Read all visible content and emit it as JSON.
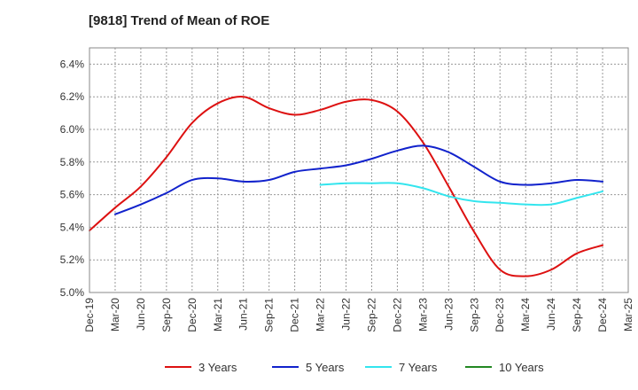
{
  "chart_data": {
    "type": "line",
    "title": "[9818]  Trend of Mean of ROE",
    "xlabel": "",
    "ylabel": "",
    "ylim": [
      5.0,
      6.5
    ],
    "yticks": [
      5.0,
      5.2,
      5.4,
      5.6,
      5.8,
      6.0,
      6.2,
      6.4
    ],
    "y_tick_format": "percent_1dp",
    "categories": [
      "Dec-19",
      "Mar-20",
      "Jun-20",
      "Sep-20",
      "Dec-20",
      "Mar-21",
      "Jun-21",
      "Sep-21",
      "Dec-21",
      "Mar-22",
      "Jun-22",
      "Sep-22",
      "Dec-22",
      "Mar-23",
      "Jun-23",
      "Sep-23",
      "Dec-23",
      "Mar-24",
      "Jun-24",
      "Sep-24",
      "Dec-24",
      "Mar-25"
    ],
    "grid": true,
    "legend_position": "bottom",
    "series": [
      {
        "name": "3 Years",
        "color": "#dd1111",
        "values": [
          5.38,
          5.52,
          5.65,
          5.83,
          6.04,
          6.16,
          6.2,
          6.13,
          6.09,
          6.12,
          6.17,
          6.18,
          6.11,
          5.92,
          5.65,
          5.37,
          5.14,
          5.1,
          5.14,
          5.24,
          5.29,
          null
        ]
      },
      {
        "name": "5 Years",
        "color": "#1122cc",
        "values": [
          null,
          5.48,
          5.54,
          5.61,
          5.69,
          5.7,
          5.68,
          5.69,
          5.74,
          5.76,
          5.78,
          5.82,
          5.87,
          5.9,
          5.86,
          5.77,
          5.68,
          5.66,
          5.67,
          5.69,
          5.68,
          null
        ]
      },
      {
        "name": "7 Years",
        "color": "#33e5ee",
        "values": [
          null,
          null,
          null,
          null,
          null,
          null,
          null,
          null,
          null,
          5.66,
          5.67,
          5.67,
          5.67,
          5.64,
          5.59,
          5.56,
          5.55,
          5.54,
          5.54,
          5.58,
          5.62,
          null
        ]
      },
      {
        "name": "10 Years",
        "color": "#228822",
        "values": [
          null,
          null,
          null,
          null,
          null,
          null,
          null,
          null,
          null,
          null,
          null,
          null,
          null,
          null,
          null,
          null,
          null,
          null,
          null,
          null,
          null,
          null
        ]
      }
    ]
  }
}
